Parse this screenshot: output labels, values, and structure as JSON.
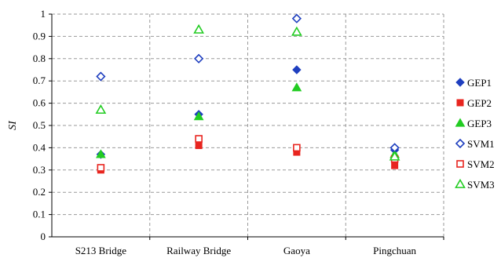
{
  "chart_data": {
    "type": "scatter",
    "title": "",
    "xlabel": "",
    "ylabel": "SI",
    "ylim": [
      0,
      1
    ],
    "yticks": [
      "0",
      "0.1",
      "0.2",
      "0.3",
      "0.4",
      "0.5",
      "0.6",
      "0.7",
      "0.8",
      "0.9",
      "1"
    ],
    "grid": true,
    "legend_position": "right",
    "categories": [
      "S213 Bridge",
      "Railway Bridge",
      "Gaoya",
      "Pingchuan"
    ],
    "series": [
      {
        "name": "GEP1",
        "marker": "diamond-filled",
        "color": "#1f3fbf",
        "values": [
          0.37,
          0.55,
          0.75,
          0.39
        ]
      },
      {
        "name": "GEP2",
        "marker": "square-filled",
        "color": "#e8251f",
        "values": [
          0.3,
          0.41,
          0.38,
          0.32
        ]
      },
      {
        "name": "GEP3",
        "marker": "triangle-filled",
        "color": "#22cc22",
        "values": [
          0.37,
          0.54,
          0.67,
          0.37
        ]
      },
      {
        "name": "SVM1",
        "marker": "diamond-open",
        "color": "#1f3fbf",
        "values": [
          0.72,
          0.8,
          0.98,
          0.4
        ]
      },
      {
        "name": "SVM2",
        "marker": "square-open",
        "color": "#e8251f",
        "values": [
          0.31,
          0.44,
          0.4,
          0.35
        ]
      },
      {
        "name": "SVM3",
        "marker": "triangle-open",
        "color": "#22cc22",
        "values": [
          0.57,
          0.93,
          0.92,
          0.36
        ]
      }
    ]
  }
}
